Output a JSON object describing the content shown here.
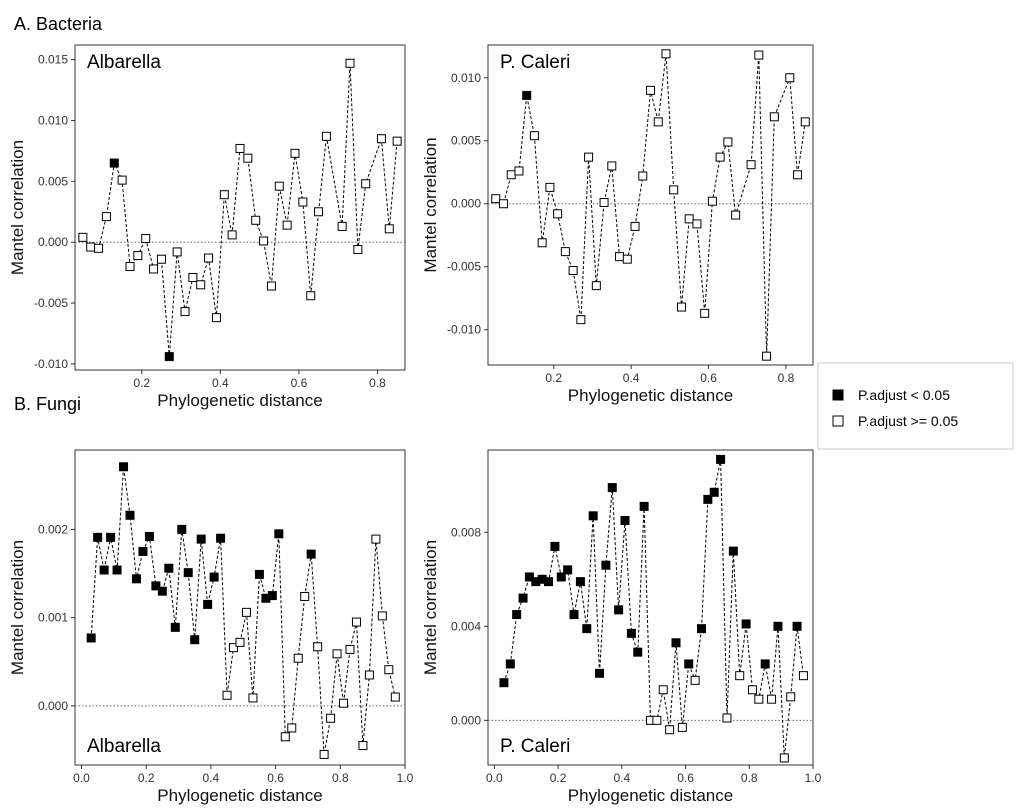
{
  "sections": [
    "A. Bacteria",
    "B. Fungi"
  ],
  "legend": [
    {
      "label": "P.adjust < 0.05",
      "fill": "#000000"
    },
    {
      "label": "P.adjust >= 0.05",
      "fill": "#ffffff"
    }
  ],
  "colors": {
    "significant": "#000000",
    "not_significant": "#ffffff",
    "line": "#000000",
    "zero_line": "#666666"
  },
  "chart_data": [
    {
      "type": "line",
      "section": "A. Bacteria",
      "panel_label": "Albarella",
      "label_position": "top-left",
      "xlabel": "Phylogenetic distance",
      "ylabel": "Mantel correlation",
      "xlim": [
        0.03,
        0.87
      ],
      "ylim": [
        -0.0105,
        0.0162
      ],
      "xticks": [
        0.2,
        0.4,
        0.6,
        0.8
      ],
      "xtick_labels": [
        "0.2",
        "0.4",
        "0.6",
        "0.8"
      ],
      "yticks": [
        -0.01,
        -0.005,
        0,
        0.005,
        0.01,
        0.015
      ],
      "ytick_labels": [
        "-0.010",
        "-0.005",
        "0.000",
        "0.005",
        "0.010",
        "0.015"
      ],
      "zero_line": true,
      "grid": false,
      "points": [
        [
          0.05,
          0.0004,
          false
        ],
        [
          0.07,
          -0.0004,
          false
        ],
        [
          0.09,
          -0.0005,
          false
        ],
        [
          0.11,
          0.0021,
          false
        ],
        [
          0.13,
          0.0065,
          true
        ],
        [
          0.15,
          0.0051,
          false
        ],
        [
          0.17,
          -0.002,
          false
        ],
        [
          0.19,
          -0.0011,
          false
        ],
        [
          0.21,
          0.0003,
          false
        ],
        [
          0.23,
          -0.0022,
          false
        ],
        [
          0.25,
          -0.0014,
          false
        ],
        [
          0.27,
          -0.0094,
          true
        ],
        [
          0.29,
          -0.0008,
          false
        ],
        [
          0.31,
          -0.0057,
          false
        ],
        [
          0.33,
          -0.0029,
          false
        ],
        [
          0.35,
          -0.0035,
          false
        ],
        [
          0.37,
          -0.0013,
          false
        ],
        [
          0.39,
          -0.0062,
          false
        ],
        [
          0.41,
          0.0039,
          false
        ],
        [
          0.43,
          0.0006,
          false
        ],
        [
          0.45,
          0.0077,
          false
        ],
        [
          0.47,
          0.0069,
          false
        ],
        [
          0.49,
          0.0018,
          false
        ],
        [
          0.51,
          0.0001,
          false
        ],
        [
          0.53,
          -0.0036,
          false
        ],
        [
          0.55,
          0.0046,
          false
        ],
        [
          0.57,
          0.0014,
          false
        ],
        [
          0.59,
          0.0073,
          false
        ],
        [
          0.61,
          0.0033,
          false
        ],
        [
          0.63,
          -0.0044,
          false
        ],
        [
          0.65,
          0.0025,
          false
        ],
        [
          0.67,
          0.0087,
          false
        ],
        [
          0.71,
          0.0013,
          false
        ],
        [
          0.73,
          0.0147,
          false
        ],
        [
          0.75,
          -0.0006,
          false
        ],
        [
          0.77,
          0.0048,
          false
        ],
        [
          0.81,
          0.0085,
          false
        ],
        [
          0.83,
          0.0011,
          false
        ],
        [
          0.85,
          0.0083,
          false
        ]
      ]
    },
    {
      "type": "line",
      "section": "A. Bacteria",
      "panel_label": "P. Caleri",
      "label_position": "top-left",
      "xlabel": "Phylogenetic distance",
      "ylabel": "Mantel correlation",
      "xlim": [
        0.03,
        0.87
      ],
      "ylim": [
        -0.0128,
        0.0126
      ],
      "xticks": [
        0.2,
        0.4,
        0.6,
        0.8
      ],
      "xtick_labels": [
        "0.2",
        "0.4",
        "0.6",
        "0.8"
      ],
      "yticks": [
        -0.01,
        -0.005,
        0,
        0.005,
        0.01
      ],
      "ytick_labels": [
        "-0.010",
        "-0.005",
        "0.000",
        "0.005",
        "0.010"
      ],
      "zero_line": true,
      "grid": false,
      "points": [
        [
          0.05,
          0.0004,
          false
        ],
        [
          0.07,
          0.0,
          false
        ],
        [
          0.09,
          0.0023,
          false
        ],
        [
          0.11,
          0.0026,
          false
        ],
        [
          0.13,
          0.0086,
          true
        ],
        [
          0.15,
          0.0054,
          false
        ],
        [
          0.17,
          -0.0031,
          false
        ],
        [
          0.19,
          0.0013,
          false
        ],
        [
          0.21,
          -0.0008,
          false
        ],
        [
          0.23,
          -0.0038,
          false
        ],
        [
          0.25,
          -0.0053,
          false
        ],
        [
          0.27,
          -0.0092,
          false
        ],
        [
          0.29,
          0.0037,
          false
        ],
        [
          0.31,
          -0.0065,
          false
        ],
        [
          0.33,
          0.0001,
          false
        ],
        [
          0.35,
          0.003,
          false
        ],
        [
          0.37,
          -0.0042,
          false
        ],
        [
          0.39,
          -0.0044,
          false
        ],
        [
          0.41,
          -0.0018,
          false
        ],
        [
          0.43,
          0.0022,
          false
        ],
        [
          0.45,
          0.009,
          false
        ],
        [
          0.47,
          0.0065,
          false
        ],
        [
          0.49,
          0.0119,
          false
        ],
        [
          0.51,
          0.0011,
          false
        ],
        [
          0.53,
          -0.0082,
          false
        ],
        [
          0.55,
          -0.0012,
          false
        ],
        [
          0.57,
          -0.0016,
          false
        ],
        [
          0.59,
          -0.0087,
          false
        ],
        [
          0.61,
          0.0002,
          false
        ],
        [
          0.63,
          0.0037,
          false
        ],
        [
          0.65,
          0.0049,
          false
        ],
        [
          0.67,
          -0.0009,
          false
        ],
        [
          0.71,
          0.0031,
          false
        ],
        [
          0.73,
          0.0118,
          false
        ],
        [
          0.75,
          -0.0121,
          false
        ],
        [
          0.77,
          0.0069,
          false
        ],
        [
          0.81,
          0.01,
          false
        ],
        [
          0.83,
          0.0023,
          false
        ],
        [
          0.85,
          0.0065,
          false
        ]
      ]
    },
    {
      "type": "line",
      "section": "B. Fungi",
      "panel_label": "Albarella",
      "label_position": "bottom-left",
      "xlabel": "Phylogenetic distance",
      "ylabel": "Mantel correlation",
      "xlim": [
        -0.02,
        1.0
      ],
      "ylim": [
        -0.00067,
        0.0029
      ],
      "xticks": [
        0.0,
        0.2,
        0.4,
        0.6,
        0.8,
        1.0
      ],
      "xtick_labels": [
        "0.0",
        "0.2",
        "0.4",
        "0.6",
        "0.8",
        "1.0"
      ],
      "yticks": [
        0,
        0.001,
        0.002
      ],
      "ytick_labels": [
        "0.000",
        "0.001",
        "0.002"
      ],
      "zero_line": true,
      "grid": false,
      "points": [
        [
          0.03,
          0.00077,
          true
        ],
        [
          0.05,
          0.00191,
          true
        ],
        [
          0.07,
          0.00154,
          true
        ],
        [
          0.09,
          0.00191,
          true
        ],
        [
          0.11,
          0.00154,
          true
        ],
        [
          0.13,
          0.00271,
          true
        ],
        [
          0.15,
          0.00216,
          true
        ],
        [
          0.17,
          0.00144,
          true
        ],
        [
          0.19,
          0.00175,
          true
        ],
        [
          0.21,
          0.00192,
          true
        ],
        [
          0.23,
          0.00136,
          true
        ],
        [
          0.25,
          0.0013,
          true
        ],
        [
          0.27,
          0.00156,
          true
        ],
        [
          0.29,
          0.00089,
          true
        ],
        [
          0.31,
          0.002,
          true
        ],
        [
          0.33,
          0.00151,
          true
        ],
        [
          0.35,
          0.00075,
          true
        ],
        [
          0.37,
          0.00189,
          true
        ],
        [
          0.39,
          0.00115,
          true
        ],
        [
          0.41,
          0.00146,
          true
        ],
        [
          0.43,
          0.0019,
          true
        ],
        [
          0.45,
          0.00012,
          false
        ],
        [
          0.47,
          0.00066,
          false
        ],
        [
          0.49,
          0.00072,
          false
        ],
        [
          0.51,
          0.00106,
          false
        ],
        [
          0.53,
          9e-05,
          false
        ],
        [
          0.55,
          0.00149,
          true
        ],
        [
          0.57,
          0.00122,
          true
        ],
        [
          0.59,
          0.00125,
          true
        ],
        [
          0.61,
          0.00195,
          true
        ],
        [
          0.63,
          -0.00035,
          false
        ],
        [
          0.65,
          -0.00025,
          false
        ],
        [
          0.67,
          0.00054,
          false
        ],
        [
          0.69,
          0.00124,
          false
        ],
        [
          0.71,
          0.00172,
          true
        ],
        [
          0.73,
          0.00067,
          false
        ],
        [
          0.75,
          -0.00055,
          false
        ],
        [
          0.77,
          -0.00014,
          false
        ],
        [
          0.79,
          0.00059,
          false
        ],
        [
          0.81,
          3e-05,
          false
        ],
        [
          0.83,
          0.00064,
          false
        ],
        [
          0.85,
          0.00095,
          false
        ],
        [
          0.87,
          -0.00045,
          false
        ],
        [
          0.89,
          0.00035,
          false
        ],
        [
          0.91,
          0.00189,
          false
        ],
        [
          0.93,
          0.00102,
          false
        ],
        [
          0.95,
          0.00041,
          false
        ],
        [
          0.97,
          0.0001,
          false
        ]
      ]
    },
    {
      "type": "line",
      "section": "B. Fungi",
      "panel_label": "P. Caleri",
      "label_position": "bottom-left",
      "xlabel": "Phylogenetic distance",
      "ylabel": "Mantel correlation",
      "xlim": [
        -0.02,
        1.0
      ],
      "ylim": [
        -0.0019,
        0.0115
      ],
      "xticks": [
        0.0,
        0.2,
        0.4,
        0.6,
        0.8,
        1.0
      ],
      "xtick_labels": [
        "0.0",
        "0.2",
        "0.4",
        "0.6",
        "0.8",
        "1.0"
      ],
      "yticks": [
        0,
        0.004,
        0.008
      ],
      "ytick_labels": [
        "0.000",
        "0.004",
        "0.008"
      ],
      "zero_line": true,
      "grid": false,
      "points": [
        [
          0.03,
          0.0016,
          true
        ],
        [
          0.05,
          0.0024,
          true
        ],
        [
          0.07,
          0.0045,
          true
        ],
        [
          0.09,
          0.0052,
          true
        ],
        [
          0.11,
          0.0061,
          true
        ],
        [
          0.13,
          0.0059,
          true
        ],
        [
          0.15,
          0.006,
          true
        ],
        [
          0.17,
          0.0059,
          true
        ],
        [
          0.19,
          0.0074,
          true
        ],
        [
          0.21,
          0.0061,
          true
        ],
        [
          0.23,
          0.0064,
          true
        ],
        [
          0.25,
          0.0045,
          true
        ],
        [
          0.27,
          0.0059,
          true
        ],
        [
          0.29,
          0.0039,
          true
        ],
        [
          0.31,
          0.0087,
          true
        ],
        [
          0.33,
          0.002,
          true
        ],
        [
          0.35,
          0.0066,
          true
        ],
        [
          0.37,
          0.0099,
          true
        ],
        [
          0.39,
          0.0047,
          true
        ],
        [
          0.41,
          0.0085,
          true
        ],
        [
          0.43,
          0.0037,
          true
        ],
        [
          0.45,
          0.0029,
          true
        ],
        [
          0.47,
          0.0091,
          true
        ],
        [
          0.49,
          0.0,
          false
        ],
        [
          0.51,
          0.0,
          false
        ],
        [
          0.53,
          0.0013,
          false
        ],
        [
          0.55,
          -0.0004,
          false
        ],
        [
          0.57,
          0.0033,
          true
        ],
        [
          0.59,
          -0.0003,
          false
        ],
        [
          0.61,
          0.0024,
          true
        ],
        [
          0.63,
          0.0017,
          false
        ],
        [
          0.65,
          0.0039,
          true
        ],
        [
          0.67,
          0.0094,
          true
        ],
        [
          0.69,
          0.0097,
          true
        ],
        [
          0.71,
          0.0111,
          true
        ],
        [
          0.73,
          0.0001,
          false
        ],
        [
          0.75,
          0.0072,
          true
        ],
        [
          0.77,
          0.0019,
          false
        ],
        [
          0.79,
          0.0041,
          true
        ],
        [
          0.81,
          0.0013,
          false
        ],
        [
          0.83,
          0.0009,
          false
        ],
        [
          0.85,
          0.0024,
          true
        ],
        [
          0.87,
          0.0009,
          false
        ],
        [
          0.89,
          0.004,
          true
        ],
        [
          0.91,
          -0.0016,
          false
        ],
        [
          0.93,
          0.001,
          false
        ],
        [
          0.95,
          0.004,
          true
        ],
        [
          0.97,
          0.0019,
          false
        ]
      ]
    }
  ]
}
